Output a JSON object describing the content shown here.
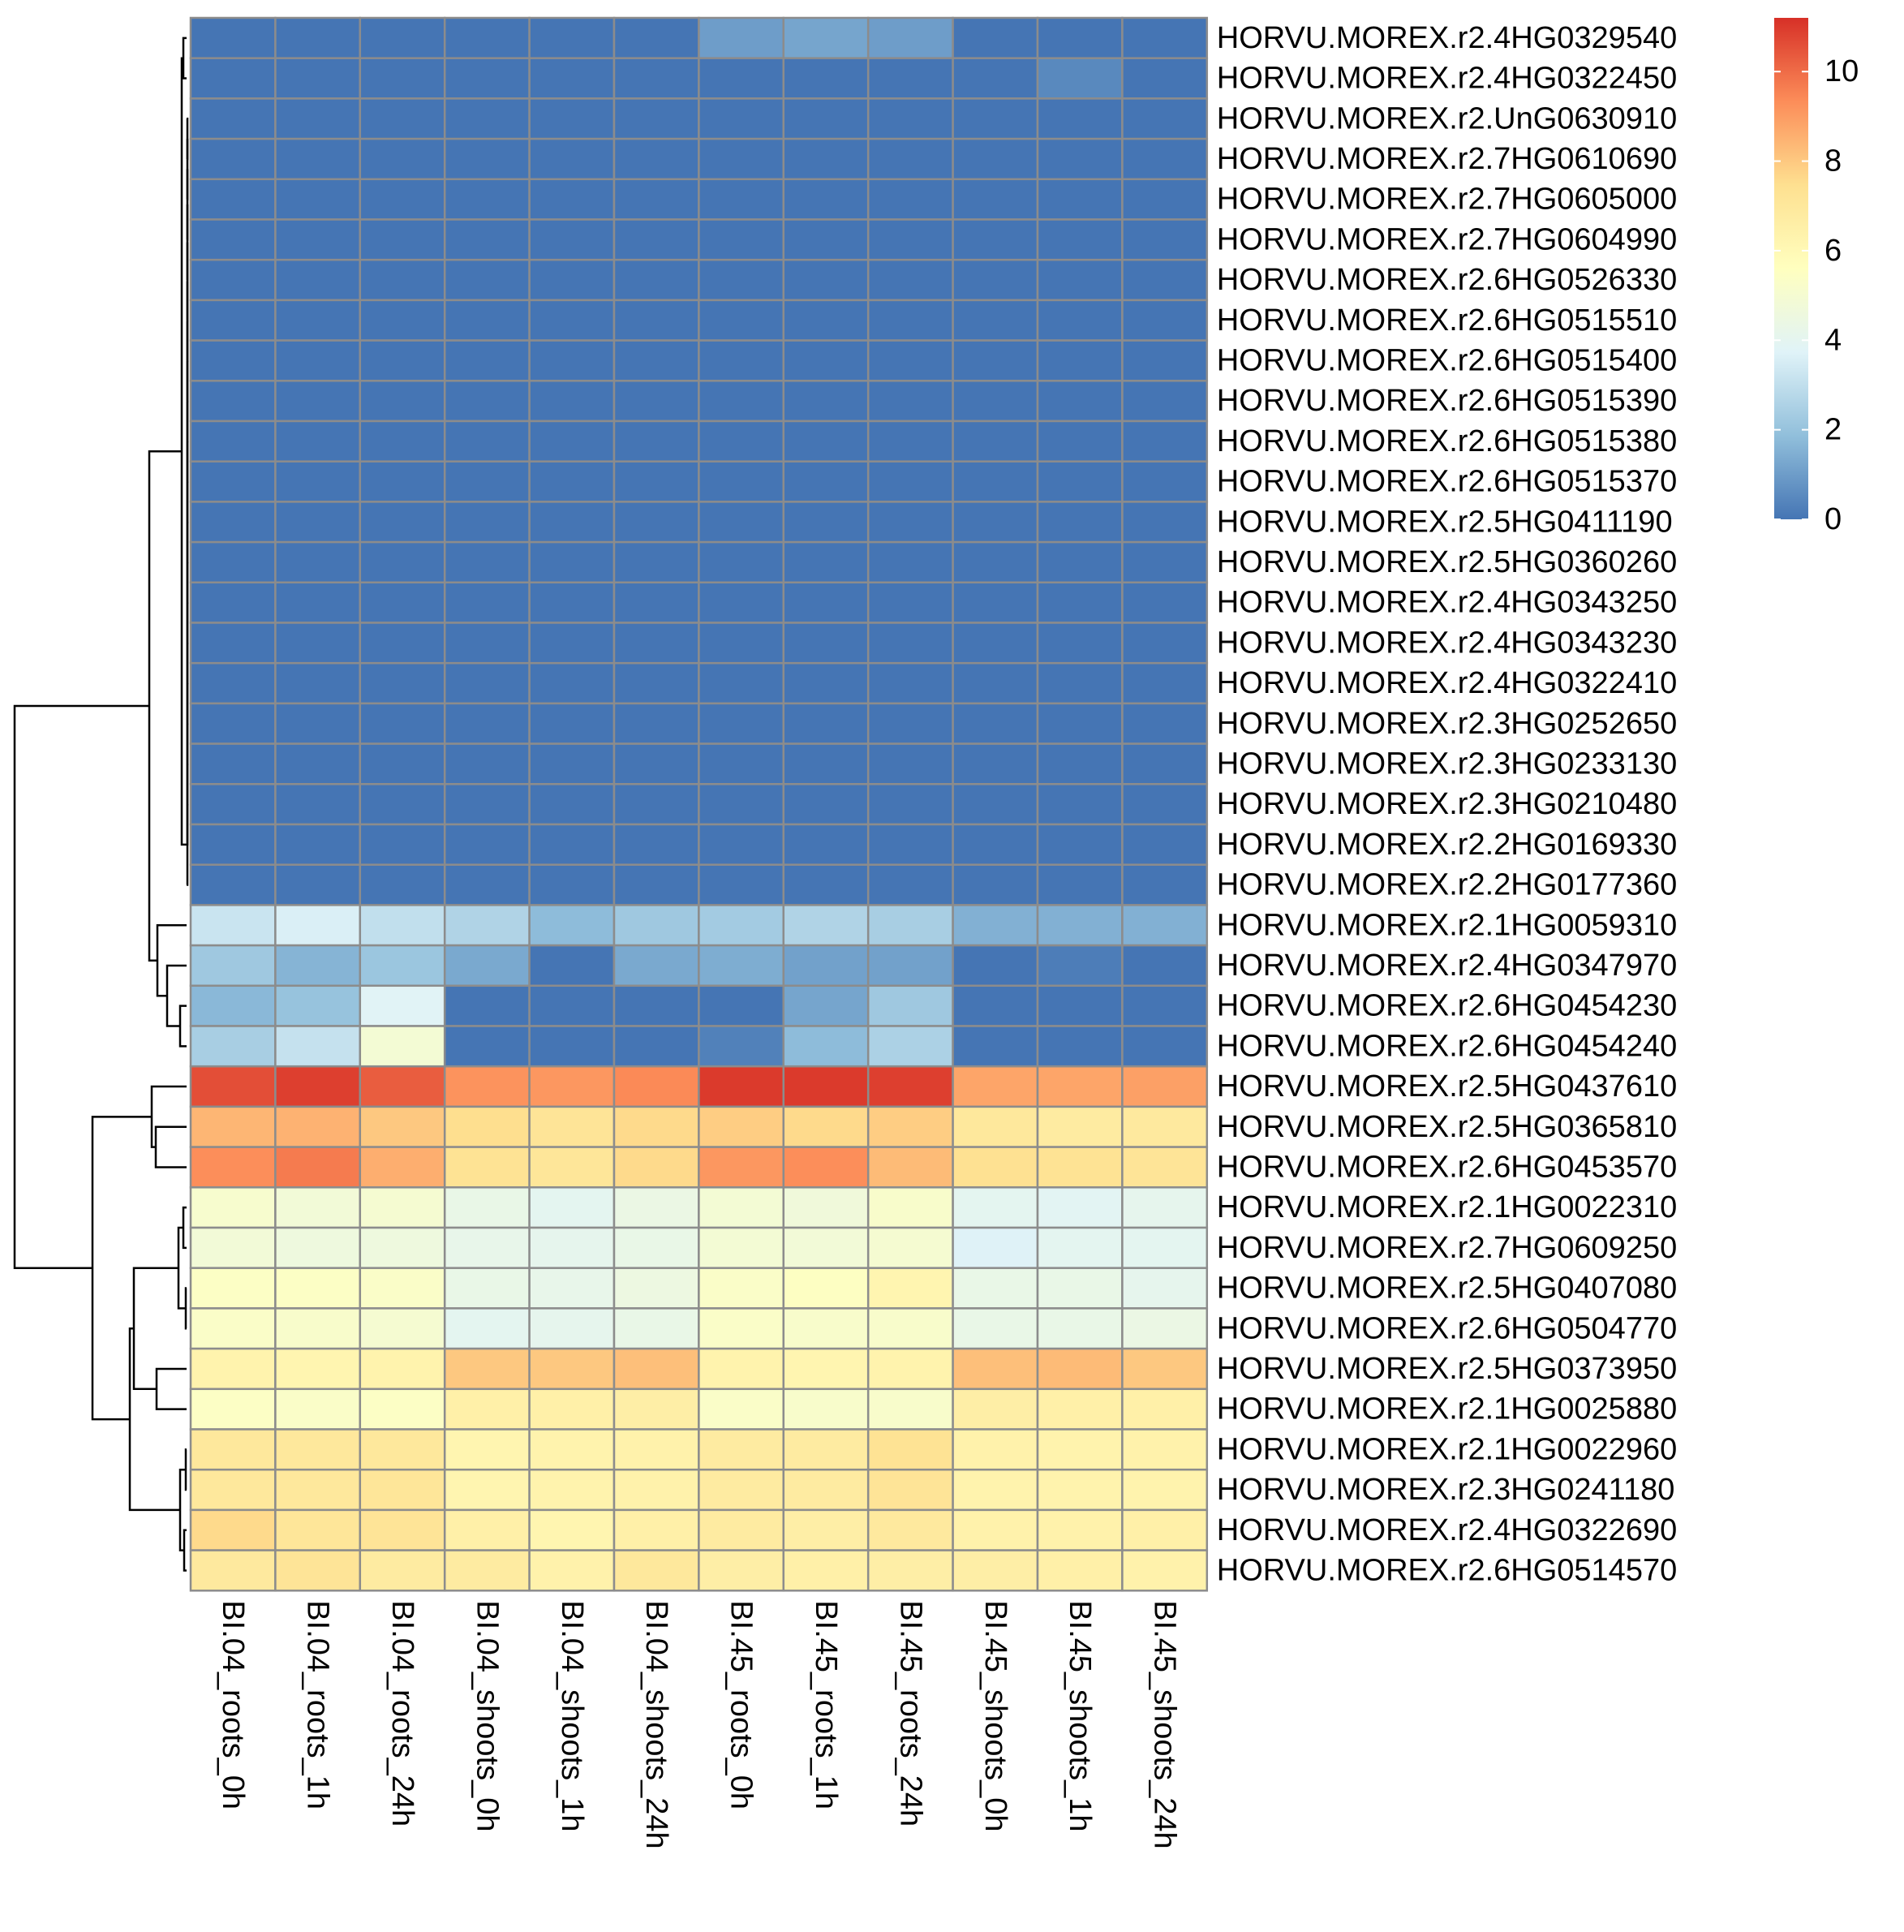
{
  "chart_data": {
    "type": "heatmap",
    "title": "",
    "xlabel": "",
    "ylabel": "",
    "columns": [
      "BI.04_roots_0h",
      "BI.04_roots_1h",
      "BI.04_roots_24h",
      "BI.04_shoots_0h",
      "BI.04_shoots_1h",
      "BI.04_shoots_24h",
      "BI.45_roots_0h",
      "BI.45_roots_1h",
      "BI.45_roots_24h",
      "BI.45_shoots_0h",
      "BI.45_shoots_1h",
      "BI.45_shoots_24h"
    ],
    "rows": [
      "HORVU.MOREX.r2.4HG0329540",
      "HORVU.MOREX.r2.4HG0322450",
      "HORVU.MOREX.r2.UnG0630910",
      "HORVU.MOREX.r2.7HG0610690",
      "HORVU.MOREX.r2.7HG0605000",
      "HORVU.MOREX.r2.7HG0604990",
      "HORVU.MOREX.r2.6HG0526330",
      "HORVU.MOREX.r2.6HG0515510",
      "HORVU.MOREX.r2.6HG0515400",
      "HORVU.MOREX.r2.6HG0515390",
      "HORVU.MOREX.r2.6HG0515380",
      "HORVU.MOREX.r2.6HG0515370",
      "HORVU.MOREX.r2.5HG0411190",
      "HORVU.MOREX.r2.5HG0360260",
      "HORVU.MOREX.r2.4HG0343250",
      "HORVU.MOREX.r2.4HG0343230",
      "HORVU.MOREX.r2.4HG0322410",
      "HORVU.MOREX.r2.3HG0252650",
      "HORVU.MOREX.r2.3HG0233130",
      "HORVU.MOREX.r2.3HG0210480",
      "HORVU.MOREX.r2.2HG0169330",
      "HORVU.MOREX.r2.2HG0177360",
      "HORVU.MOREX.r2.1HG0059310",
      "HORVU.MOREX.r2.4HG0347970",
      "HORVU.MOREX.r2.6HG0454230",
      "HORVU.MOREX.r2.6HG0454240",
      "HORVU.MOREX.r2.5HG0437610",
      "HORVU.MOREX.r2.5HG0365810",
      "HORVU.MOREX.r2.6HG0453570",
      "HORVU.MOREX.r2.1HG0022310",
      "HORVU.MOREX.r2.7HG0609250",
      "HORVU.MOREX.r2.5HG0407080",
      "HORVU.MOREX.r2.6HG0504770",
      "HORVU.MOREX.r2.5HG0373950",
      "HORVU.MOREX.r2.1HG0025880",
      "HORVU.MOREX.r2.1HG0022960",
      "HORVU.MOREX.r2.3HG0241180",
      "HORVU.MOREX.r2.4HG0322690",
      "HORVU.MOREX.r2.6HG0514570"
    ],
    "values": [
      [
        0,
        0,
        0,
        0,
        0,
        0,
        1,
        1.2,
        1,
        0,
        0,
        0
      ],
      [
        0,
        0,
        0,
        0,
        0,
        0,
        0,
        0,
        0,
        0,
        0.5,
        0
      ],
      [
        0,
        0,
        0,
        0,
        0,
        0,
        0,
        0,
        0,
        0,
        0,
        0
      ],
      [
        0,
        0,
        0,
        0,
        0,
        0,
        0,
        0,
        0,
        0,
        0,
        0
      ],
      [
        0,
        0,
        0,
        0,
        0,
        0,
        0,
        0,
        0,
        0,
        0,
        0
      ],
      [
        0,
        0,
        0,
        0,
        0,
        0,
        0,
        0,
        0,
        0,
        0,
        0
      ],
      [
        0,
        0,
        0,
        0,
        0,
        0,
        0,
        0,
        0,
        0,
        0,
        0
      ],
      [
        0,
        0,
        0,
        0,
        0,
        0,
        0,
        0,
        0,
        0,
        0,
        0
      ],
      [
        0,
        0,
        0,
        0,
        0,
        0,
        0,
        0,
        0,
        0,
        0,
        0
      ],
      [
        0,
        0,
        0,
        0,
        0,
        0,
        0,
        0,
        0,
        0,
        0,
        0
      ],
      [
        0,
        0,
        0,
        0,
        0,
        0,
        0,
        0,
        0,
        0,
        0,
        0
      ],
      [
        0,
        0,
        0,
        0,
        0,
        0,
        0,
        0,
        0,
        0,
        0,
        0
      ],
      [
        0,
        0,
        0,
        0,
        0,
        0,
        0,
        0,
        0,
        0,
        0,
        0
      ],
      [
        0,
        0,
        0,
        0,
        0,
        0,
        0,
        0,
        0,
        0,
        0,
        0
      ],
      [
        0,
        0,
        0,
        0,
        0,
        0,
        0,
        0,
        0,
        0,
        0,
        0
      ],
      [
        0,
        0,
        0,
        0,
        0,
        0,
        0,
        0,
        0,
        0,
        0,
        0
      ],
      [
        0,
        0,
        0,
        0,
        0,
        0,
        0,
        0,
        0,
        0,
        0,
        0
      ],
      [
        0,
        0,
        0,
        0,
        0,
        0,
        0,
        0,
        0,
        0,
        0,
        0
      ],
      [
        0,
        0,
        0,
        0,
        0,
        0,
        0,
        0,
        0,
        0,
        0,
        0
      ],
      [
        0,
        0,
        0,
        0,
        0,
        0,
        0,
        0,
        0,
        0,
        0,
        0
      ],
      [
        0,
        0,
        0,
        0,
        0,
        0,
        0,
        0,
        0,
        0,
        0,
        0
      ],
      [
        0,
        0,
        0,
        0,
        0,
        0,
        0,
        0,
        0,
        0,
        0,
        0
      ],
      [
        3.2,
        3.6,
        3.0,
        2.6,
        1.8,
        2.2,
        2.3,
        2.6,
        2.4,
        1.5,
        1.5,
        1.5
      ],
      [
        2.2,
        1.6,
        2.1,
        1.3,
        0,
        1.3,
        1.4,
        1.1,
        1.1,
        0,
        0.2,
        0
      ],
      [
        1.7,
        2.0,
        3.8,
        0,
        0,
        0,
        0,
        1.2,
        2.2,
        0,
        0,
        0
      ],
      [
        2.4,
        3.1,
        4.9,
        0,
        0,
        0,
        0.3,
        1.8,
        2.5,
        0,
        0,
        0
      ],
      [
        10.6,
        10.9,
        10.3,
        9.2,
        9.1,
        9.4,
        11.0,
        11.0,
        10.9,
        8.8,
        8.8,
        8.9
      ],
      [
        8.4,
        8.5,
        8.0,
        7.5,
        7.2,
        7.6,
        7.9,
        7.6,
        7.9,
        7.0,
        6.8,
        6.9
      ],
      [
        9.3,
        9.7,
        8.6,
        7.3,
        7.1,
        7.6,
        9.1,
        9.3,
        8.3,
        7.4,
        7.3,
        7.2
      ],
      [
        5.1,
        4.8,
        5.0,
        4.3,
        4.0,
        4.4,
        4.9,
        4.7,
        5.2,
        4.0,
        3.9,
        4.1
      ],
      [
        4.8,
        4.6,
        4.6,
        4.2,
        4.1,
        4.3,
        4.9,
        4.8,
        5.0,
        3.7,
        4.0,
        4.0
      ],
      [
        5.4,
        5.4,
        5.3,
        4.3,
        4.2,
        4.5,
        5.3,
        5.5,
        6.2,
        4.3,
        4.3,
        4.1
      ],
      [
        5.3,
        5.2,
        5.0,
        4.0,
        4.1,
        4.3,
        5.3,
        5.2,
        5.2,
        4.3,
        4.3,
        4.4
      ],
      [
        6.3,
        6.2,
        6.3,
        8.0,
        8.0,
        8.2,
        6.3,
        6.2,
        6.3,
        8.2,
        8.3,
        8.0
      ],
      [
        5.4,
        5.3,
        5.4,
        6.5,
        6.5,
        6.6,
        5.3,
        5.2,
        5.2,
        6.6,
        6.5,
        6.5
      ],
      [
        7.0,
        7.0,
        7.0,
        6.2,
        6.3,
        6.4,
        6.8,
        6.8,
        7.3,
        6.4,
        6.3,
        6.4
      ],
      [
        7.0,
        7.0,
        7.1,
        6.2,
        6.3,
        6.4,
        6.8,
        6.8,
        7.2,
        6.3,
        6.3,
        6.3
      ],
      [
        7.6,
        7.1,
        7.2,
        6.5,
        6.2,
        6.5,
        6.8,
        6.6,
        6.9,
        6.4,
        6.4,
        6.5
      ],
      [
        6.9,
        7.2,
        6.8,
        6.8,
        6.4,
        7.0,
        6.6,
        6.5,
        6.6,
        6.6,
        6.5,
        6.4
      ]
    ],
    "color_scale": {
      "min": 0,
      "max": 11.2,
      "stops": [
        "#4575B4",
        "#91BFDB",
        "#E0F3F8",
        "#FFFFBF",
        "#FEE090",
        "#FC8D59",
        "#D73027"
      ],
      "ticks": [
        0,
        2,
        4,
        6,
        8,
        10
      ]
    },
    "legend": "right",
    "row_dendrogram": true,
    "column_dendrogram": false
  }
}
